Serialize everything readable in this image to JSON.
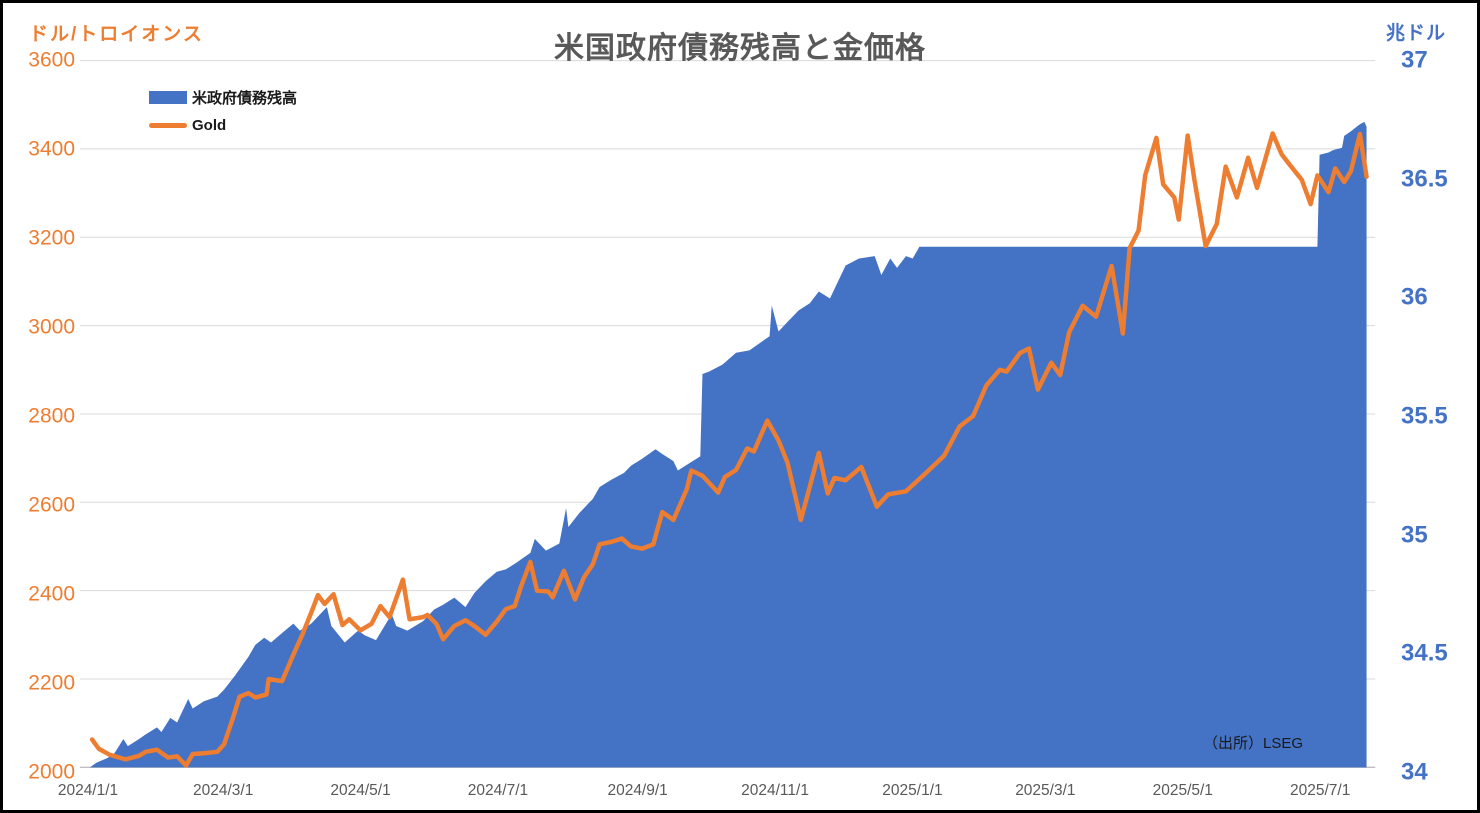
{
  "chart_data": {
    "type": "area",
    "combo": "area (right axis) + line (left axis), daily time series",
    "title": "米国政府債務残高と金価格",
    "source_note": "（出所）LSEG",
    "grid": true,
    "legend_position": "top-left",
    "background_color": "#FFFFFF",
    "border_color": "#000000",
    "gridline_color": "#D9D9D9",
    "title_color": "#595959",
    "x_axis": {
      "domain": [
        "2024-01-01",
        "2025-07-28"
      ],
      "tick_dates": [
        "2024-01-01",
        "2024-03-01",
        "2024-05-01",
        "2024-07-01",
        "2024-09-01",
        "2024-11-01",
        "2025-01-01",
        "2025-03-01",
        "2025-05-01",
        "2025-07-01"
      ],
      "tick_labels": [
        "2024/1/1",
        "2024/3/1",
        "2024/5/1",
        "2024/7/1",
        "2024/9/1",
        "2024/11/1",
        "2025/1/1",
        "2025/3/1",
        "2025/5/1",
        "2025/7/1"
      ],
      "label_color": "#595959"
    },
    "left_axis": {
      "unit_label": "ドル/トロイオンス",
      "min": 2000,
      "max": 3600,
      "ticks": [
        3600,
        3400,
        3200,
        3000,
        2800,
        2600,
        2400,
        2200,
        2000
      ],
      "color": "#ED7D31"
    },
    "right_axis": {
      "unit_label": "兆ドル",
      "min": 34,
      "max": 37,
      "ticks": [
        37,
        36.5,
        36,
        35.5,
        35,
        34.5,
        34
      ],
      "color": "#4472C4"
    },
    "series": [
      {
        "name": "米政府債務残高",
        "type": "area",
        "axis": "right",
        "color": "#4472C4",
        "points": [
          [
            "2024-01-01",
            34.0
          ],
          [
            "2024-01-04",
            34.02
          ],
          [
            "2024-01-09",
            34.04
          ],
          [
            "2024-01-12",
            34.06
          ],
          [
            "2024-01-16",
            34.12
          ],
          [
            "2024-01-18",
            34.09
          ],
          [
            "2024-01-23",
            34.12
          ],
          [
            "2024-01-26",
            34.14
          ],
          [
            "2024-01-31",
            34.17
          ],
          [
            "2024-02-02",
            34.15
          ],
          [
            "2024-02-06",
            34.21
          ],
          [
            "2024-02-09",
            34.19
          ],
          [
            "2024-02-14",
            34.29
          ],
          [
            "2024-02-16",
            34.25
          ],
          [
            "2024-02-21",
            34.28
          ],
          [
            "2024-02-27",
            34.3
          ],
          [
            "2024-03-01",
            34.33
          ],
          [
            "2024-03-06",
            34.39
          ],
          [
            "2024-03-12",
            34.47
          ],
          [
            "2024-03-15",
            34.52
          ],
          [
            "2024-03-19",
            34.55
          ],
          [
            "2024-03-22",
            34.53
          ],
          [
            "2024-03-27",
            34.57
          ],
          [
            "2024-04-01",
            34.61
          ],
          [
            "2024-04-04",
            34.58
          ],
          [
            "2024-04-09",
            34.61
          ],
          [
            "2024-04-16",
            34.68
          ],
          [
            "2024-04-18",
            34.6
          ],
          [
            "2024-04-24",
            34.53
          ],
          [
            "2024-04-30",
            34.58
          ],
          [
            "2024-05-03",
            34.56
          ],
          [
            "2024-05-08",
            34.54
          ],
          [
            "2024-05-15",
            34.65
          ],
          [
            "2024-05-17",
            34.6
          ],
          [
            "2024-05-22",
            34.58
          ],
          [
            "2024-05-29",
            34.62
          ],
          [
            "2024-06-03",
            34.67
          ],
          [
            "2024-06-07",
            34.69
          ],
          [
            "2024-06-12",
            34.72
          ],
          [
            "2024-06-17",
            34.68
          ],
          [
            "2024-06-21",
            34.74
          ],
          [
            "2024-06-26",
            34.79
          ],
          [
            "2024-07-01",
            34.83
          ],
          [
            "2024-07-05",
            34.84
          ],
          [
            "2024-07-10",
            34.87
          ],
          [
            "2024-07-16",
            34.91
          ],
          [
            "2024-07-18",
            34.97
          ],
          [
            "2024-07-23",
            34.92
          ],
          [
            "2024-07-29",
            34.95
          ],
          [
            "2024-08-01",
            35.1
          ],
          [
            "2024-08-02",
            35.02
          ],
          [
            "2024-08-07",
            35.08
          ],
          [
            "2024-08-13",
            35.14
          ],
          [
            "2024-08-16",
            35.19
          ],
          [
            "2024-08-21",
            35.22
          ],
          [
            "2024-08-27",
            35.25
          ],
          [
            "2024-08-30",
            35.28
          ],
          [
            "2024-09-04",
            35.31
          ],
          [
            "2024-09-10",
            35.35
          ],
          [
            "2024-09-13",
            35.33
          ],
          [
            "2024-09-18",
            35.3
          ],
          [
            "2024-09-20",
            35.26
          ],
          [
            "2024-09-25",
            35.29
          ],
          [
            "2024-09-30",
            35.32
          ],
          [
            "2024-10-01",
            35.67
          ],
          [
            "2024-10-04",
            35.68
          ],
          [
            "2024-10-10",
            35.71
          ],
          [
            "2024-10-16",
            35.76
          ],
          [
            "2024-10-22",
            35.77
          ],
          [
            "2024-10-25",
            35.79
          ],
          [
            "2024-10-31",
            35.83
          ],
          [
            "2024-11-01",
            35.96
          ],
          [
            "2024-11-04",
            35.85
          ],
          [
            "2024-11-08",
            35.89
          ],
          [
            "2024-11-13",
            35.94
          ],
          [
            "2024-11-18",
            35.97
          ],
          [
            "2024-11-22",
            36.02
          ],
          [
            "2024-11-27",
            35.99
          ],
          [
            "2024-12-04",
            36.13
          ],
          [
            "2024-12-10",
            36.16
          ],
          [
            "2024-12-17",
            36.17
          ],
          [
            "2024-12-20",
            36.09
          ],
          [
            "2024-12-24",
            36.16
          ],
          [
            "2024-12-27",
            36.12
          ],
          [
            "2024-12-31",
            36.17
          ],
          [
            "2025-01-03",
            36.16
          ],
          [
            "2025-01-06",
            36.21
          ],
          [
            "2025-03-01",
            36.21
          ],
          [
            "2025-05-01",
            36.21
          ],
          [
            "2025-07-03",
            36.21
          ],
          [
            "2025-07-04",
            36.6
          ],
          [
            "2025-07-08",
            36.61
          ],
          [
            "2025-07-10",
            36.62
          ],
          [
            "2025-07-14",
            36.63
          ],
          [
            "2025-07-15",
            36.68
          ],
          [
            "2025-07-18",
            36.7
          ],
          [
            "2025-07-22",
            36.73
          ],
          [
            "2025-07-24",
            36.74
          ],
          [
            "2025-07-25",
            36.72
          ]
        ]
      },
      {
        "name": "Gold",
        "type": "line",
        "axis": "left",
        "color": "#ED7D31",
        "points": [
          [
            "2024-01-02",
            2063
          ],
          [
            "2024-01-05",
            2042
          ],
          [
            "2024-01-10",
            2028
          ],
          [
            "2024-01-17",
            2018
          ],
          [
            "2024-01-23",
            2026
          ],
          [
            "2024-01-26",
            2035
          ],
          [
            "2024-01-31",
            2040
          ],
          [
            "2024-02-05",
            2022
          ],
          [
            "2024-02-09",
            2025
          ],
          [
            "2024-02-13",
            2004
          ],
          [
            "2024-02-16",
            2030
          ],
          [
            "2024-02-21",
            2032
          ],
          [
            "2024-02-27",
            2035
          ],
          [
            "2024-03-01",
            2052
          ],
          [
            "2024-03-05",
            2112
          ],
          [
            "2024-03-08",
            2160
          ],
          [
            "2024-03-12",
            2168
          ],
          [
            "2024-03-15",
            2158
          ],
          [
            "2024-03-20",
            2165
          ],
          [
            "2024-03-21",
            2200
          ],
          [
            "2024-03-27",
            2195
          ],
          [
            "2024-04-01",
            2255
          ],
          [
            "2024-04-05",
            2300
          ],
          [
            "2024-04-09",
            2350
          ],
          [
            "2024-04-12",
            2390
          ],
          [
            "2024-04-15",
            2370
          ],
          [
            "2024-04-19",
            2392
          ],
          [
            "2024-04-23",
            2322
          ],
          [
            "2024-04-26",
            2335
          ],
          [
            "2024-05-01",
            2310
          ],
          [
            "2024-05-06",
            2325
          ],
          [
            "2024-05-10",
            2365
          ],
          [
            "2024-05-14",
            2340
          ],
          [
            "2024-05-20",
            2425
          ],
          [
            "2024-05-23",
            2335
          ],
          [
            "2024-05-29",
            2340
          ],
          [
            "2024-05-31",
            2345
          ],
          [
            "2024-06-04",
            2325
          ],
          [
            "2024-06-07",
            2290
          ],
          [
            "2024-06-12",
            2320
          ],
          [
            "2024-06-17",
            2333
          ],
          [
            "2024-06-21",
            2320
          ],
          [
            "2024-06-26",
            2300
          ],
          [
            "2024-07-01",
            2330
          ],
          [
            "2024-07-05",
            2358
          ],
          [
            "2024-07-09",
            2365
          ],
          [
            "2024-07-12",
            2412
          ],
          [
            "2024-07-16",
            2465
          ],
          [
            "2024-07-19",
            2400
          ],
          [
            "2024-07-24",
            2398
          ],
          [
            "2024-07-26",
            2385
          ],
          [
            "2024-07-31",
            2445
          ],
          [
            "2024-08-05",
            2380
          ],
          [
            "2024-08-09",
            2430
          ],
          [
            "2024-08-13",
            2460
          ],
          [
            "2024-08-16",
            2505
          ],
          [
            "2024-08-21",
            2510
          ],
          [
            "2024-08-26",
            2518
          ],
          [
            "2024-08-30",
            2500
          ],
          [
            "2024-09-04",
            2495
          ],
          [
            "2024-09-09",
            2505
          ],
          [
            "2024-09-13",
            2578
          ],
          [
            "2024-09-18",
            2560
          ],
          [
            "2024-09-24",
            2630
          ],
          [
            "2024-09-26",
            2672
          ],
          [
            "2024-10-01",
            2660
          ],
          [
            "2024-10-08",
            2622
          ],
          [
            "2024-10-11",
            2657
          ],
          [
            "2024-10-16",
            2673
          ],
          [
            "2024-10-21",
            2722
          ],
          [
            "2024-10-24",
            2715
          ],
          [
            "2024-10-30",
            2785
          ],
          [
            "2024-11-04",
            2740
          ],
          [
            "2024-11-08",
            2690
          ],
          [
            "2024-11-14",
            2560
          ],
          [
            "2024-11-22",
            2712
          ],
          [
            "2024-11-26",
            2620
          ],
          [
            "2024-11-29",
            2655
          ],
          [
            "2024-12-04",
            2650
          ],
          [
            "2024-12-11",
            2680
          ],
          [
            "2024-12-18",
            2590
          ],
          [
            "2024-12-23",
            2618
          ],
          [
            "2024-12-31",
            2625
          ],
          [
            "2025-01-08",
            2662
          ],
          [
            "2025-01-17",
            2705
          ],
          [
            "2025-01-24",
            2772
          ],
          [
            "2025-01-30",
            2795
          ],
          [
            "2025-02-05",
            2865
          ],
          [
            "2025-02-11",
            2900
          ],
          [
            "2025-02-14",
            2896
          ],
          [
            "2025-02-20",
            2938
          ],
          [
            "2025-02-24",
            2948
          ],
          [
            "2025-02-28",
            2855
          ],
          [
            "2025-03-06",
            2916
          ],
          [
            "2025-03-10",
            2888
          ],
          [
            "2025-03-14",
            2985
          ],
          [
            "2025-03-20",
            3045
          ],
          [
            "2025-03-26",
            3020
          ],
          [
            "2025-04-02",
            3135
          ],
          [
            "2025-04-07",
            2982
          ],
          [
            "2025-04-10",
            3175
          ],
          [
            "2025-04-14",
            3215
          ],
          [
            "2025-04-17",
            3340
          ],
          [
            "2025-04-22",
            3425
          ],
          [
            "2025-04-25",
            3320
          ],
          [
            "2025-04-30",
            3290
          ],
          [
            "2025-05-02",
            3240
          ],
          [
            "2025-05-06",
            3430
          ],
          [
            "2025-05-09",
            3330
          ],
          [
            "2025-05-14",
            3180
          ],
          [
            "2025-05-19",
            3230
          ],
          [
            "2025-05-23",
            3360
          ],
          [
            "2025-05-28",
            3290
          ],
          [
            "2025-06-02",
            3380
          ],
          [
            "2025-06-06",
            3312
          ],
          [
            "2025-06-13",
            3435
          ],
          [
            "2025-06-17",
            3388
          ],
          [
            "2025-06-20",
            3368
          ],
          [
            "2025-06-26",
            3330
          ],
          [
            "2025-06-30",
            3275
          ],
          [
            "2025-07-03",
            3340
          ],
          [
            "2025-07-08",
            3302
          ],
          [
            "2025-07-11",
            3356
          ],
          [
            "2025-07-15",
            3325
          ],
          [
            "2025-07-18",
            3350
          ],
          [
            "2025-07-22",
            3434
          ],
          [
            "2025-07-25",
            3337
          ]
        ]
      }
    ],
    "legend": [
      {
        "label": "米政府債務残高",
        "swatch": "area",
        "color": "#4472C4"
      },
      {
        "label": "Gold",
        "swatch": "line",
        "color": "#ED7D31"
      }
    ]
  }
}
